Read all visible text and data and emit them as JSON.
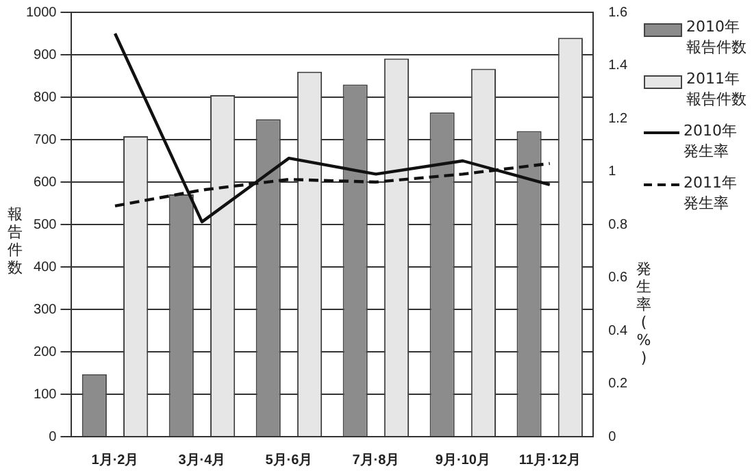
{
  "chart_data": {
    "type": "bar",
    "categories": [
      "1月·2月",
      "3月·4月",
      "5月·6月",
      "7月·8月",
      "9月·10月",
      "11月·12月"
    ],
    "ylabel": "報告件数",
    "y2label": "発生率(%)",
    "ylim": [
      0,
      1000
    ],
    "yticks": [
      0,
      100,
      200,
      300,
      400,
      500,
      600,
      700,
      800,
      900,
      1000
    ],
    "y2lim": [
      0,
      1.6
    ],
    "y2ticks": [
      0,
      0.2,
      0.4,
      0.6,
      0.8,
      1,
      1.2,
      1.4,
      1.6
    ],
    "grid": "y",
    "legend": "right",
    "marker": "none",
    "series": [
      {
        "name": "2010年報告件数",
        "color": "#8c8c8c",
        "values": [
          147,
          571,
          748,
          830,
          764,
          720
        ]
      },
      {
        "name": "2011年報告件数",
        "color": "#e6e6e6",
        "values": [
          708,
          805,
          860,
          891,
          867,
          940
        ]
      },
      {
        "name": "2010年発生率",
        "type": "line",
        "axis": "y2",
        "color": "#111111",
        "line_style": "solid",
        "values": [
          1.52,
          0.81,
          1.05,
          0.99,
          1.04,
          0.95
        ]
      },
      {
        "name": "2011年発生率",
        "type": "line",
        "axis": "y2",
        "color": "#111111",
        "line_style": "dashed",
        "values": [
          0.87,
          0.93,
          0.97,
          0.96,
          0.99,
          1.03
        ]
      }
    ]
  }
}
